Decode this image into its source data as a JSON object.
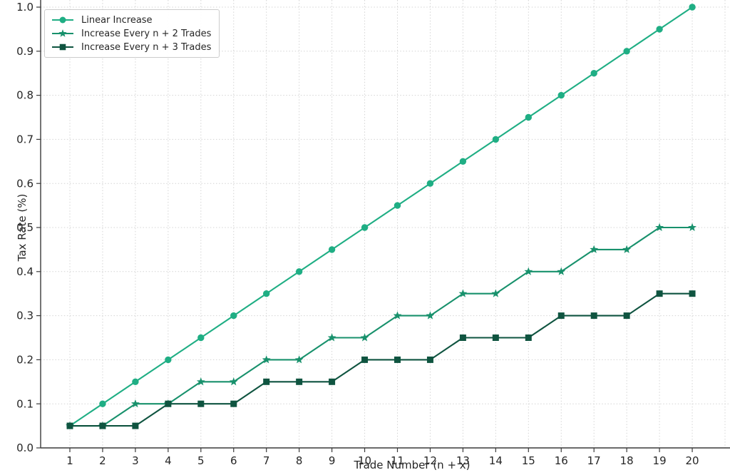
{
  "chart_data": {
    "type": "line",
    "title": "",
    "xlabel": "Trade Number (n + x)",
    "ylabel": "Tax Rate (%)",
    "x": [
      1,
      2,
      3,
      4,
      5,
      6,
      7,
      8,
      9,
      10,
      11,
      12,
      13,
      14,
      15,
      16,
      17,
      18,
      19,
      20
    ],
    "x_tick_labels": [
      "1",
      "2",
      "3",
      "4",
      "5",
      "6",
      "7",
      "8",
      "9",
      "10",
      "11",
      "12",
      "13",
      "14",
      "15",
      "16",
      "17",
      "18",
      "19",
      "20"
    ],
    "y_ticks": [
      0.0,
      0.1,
      0.2,
      0.3,
      0.4,
      0.5,
      0.6,
      0.7,
      0.8,
      0.9,
      1.0
    ],
    "y_tick_labels": [
      "0.0",
      "0.1",
      "0.2",
      "0.3",
      "0.4",
      "0.5",
      "0.6",
      "0.7",
      "0.8",
      "0.9",
      "1.0"
    ],
    "ylim": [
      0.0,
      1.0
    ],
    "grid": true,
    "grid_style": "dotted",
    "legend_position": "upper left",
    "series": [
      {
        "name": "Linear Increase",
        "marker": "circle",
        "color": "#1fae84",
        "values": [
          0.05,
          0.1,
          0.15,
          0.2,
          0.25,
          0.3,
          0.35,
          0.4,
          0.45,
          0.5,
          0.55,
          0.6,
          0.65,
          0.7,
          0.75,
          0.8,
          0.85,
          0.9,
          0.95,
          1.0
        ]
      },
      {
        "name": "Increase Every n + 2 Trades",
        "marker": "star",
        "color": "#18916c",
        "values": [
          0.05,
          0.05,
          0.1,
          0.1,
          0.15,
          0.15,
          0.2,
          0.2,
          0.25,
          0.25,
          0.3,
          0.3,
          0.35,
          0.35,
          0.4,
          0.4,
          0.45,
          0.45,
          0.5,
          0.5
        ]
      },
      {
        "name": "Increase Every n + 3 Trades",
        "marker": "square",
        "color": "#0f5440",
        "values": [
          0.05,
          0.05,
          0.05,
          0.1,
          0.1,
          0.1,
          0.15,
          0.15,
          0.15,
          0.2,
          0.2,
          0.2,
          0.25,
          0.25,
          0.25,
          0.3,
          0.3,
          0.3,
          0.35,
          0.35
        ]
      }
    ],
    "colors": {
      "grid": "#d4d4d4",
      "spine": "#3a3a3a",
      "tick_label": "#262626"
    }
  }
}
